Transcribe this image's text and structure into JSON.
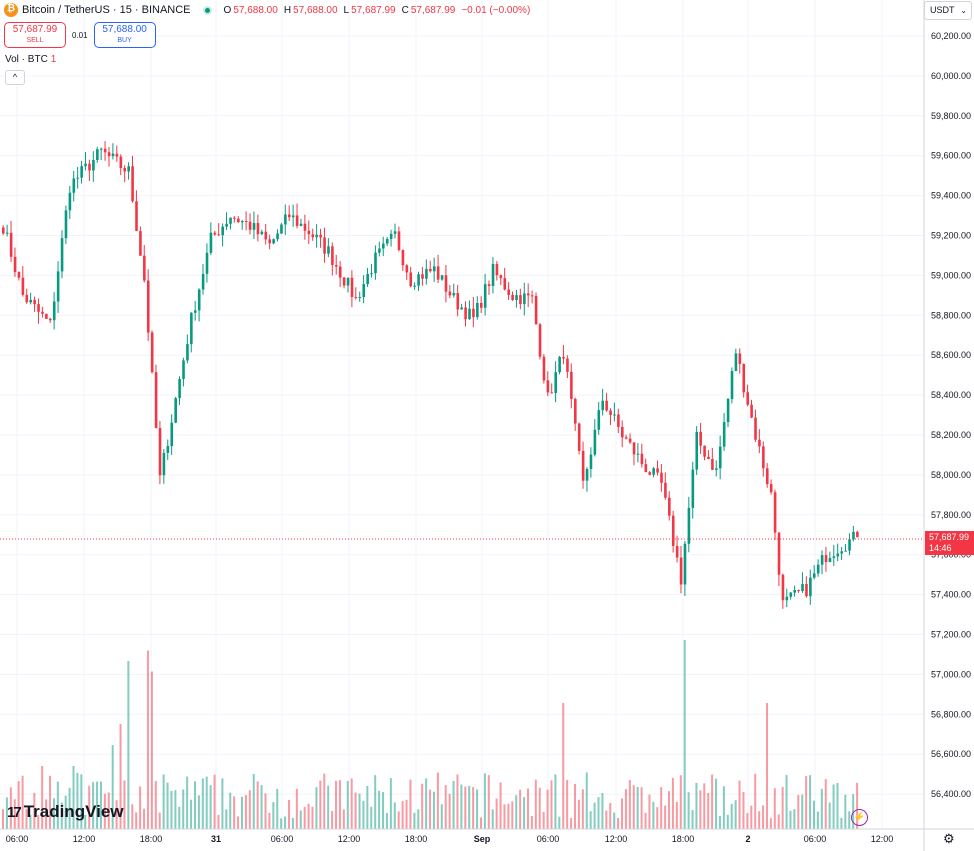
{
  "header": {
    "symbol": "Bitcoin / TetherUS · 15 · BINANCE",
    "ohlc": [
      {
        "key": "O",
        "value": "57,688.00"
      },
      {
        "key": "H",
        "value": "57,688.00"
      },
      {
        "key": "L",
        "value": "57,687.99"
      },
      {
        "key": "C",
        "value": "57,687.99"
      }
    ],
    "change": "−0.01 (−0.00%)",
    "icon": "bitcoin-icon"
  },
  "trade": {
    "sell_price": "57,687.99",
    "sell_label": "SELL",
    "spread": "0.01",
    "buy_price": "57,688.00",
    "buy_label": "BUY"
  },
  "volume": {
    "label": "Vol · BTC",
    "count": "1"
  },
  "collapse_icon": "chevron-up-icon",
  "currency": {
    "label": "USDT",
    "icon": "chevron-down-icon"
  },
  "last_price": {
    "value": "57,687.99",
    "countdown": "14:46"
  },
  "brand": {
    "name": "TradingView"
  },
  "colors": {
    "up": "#089981",
    "down": "#f23645",
    "grid": "#f0f3fa"
  },
  "chart_data": {
    "type": "candlestick",
    "title": "Bitcoin / TetherUS · 15 · BINANCE",
    "y_ticks": [
      "60,200.00",
      "60,000.00",
      "59,800.00",
      "59,600.00",
      "59,400.00",
      "59,200.00",
      "59,000.00",
      "58,800.00",
      "58,600.00",
      "58,400.00",
      "58,200.00",
      "58,000.00",
      "57,800.00",
      "57,600.00",
      "57,400.00",
      "57,200.00",
      "57,000.00",
      "56,800.00",
      "56,600.00",
      "56,400.00"
    ],
    "ylim": [
      56260,
      60300
    ],
    "x_ticks": [
      "06:00",
      "12:00",
      "18:00",
      "31",
      "06:00",
      "12:00",
      "18:00",
      "Sep",
      "06:00",
      "12:00",
      "18:00",
      "2",
      "06:00",
      "12:00"
    ],
    "anchors": [
      [
        0,
        59250
      ],
      [
        5,
        58900
      ],
      [
        12,
        58750
      ],
      [
        17,
        59450
      ],
      [
        25,
        59620
      ],
      [
        32,
        59520
      ],
      [
        36,
        58980
      ],
      [
        40,
        57980
      ],
      [
        43,
        58280
      ],
      [
        48,
        58780
      ],
      [
        53,
        59180
      ],
      [
        58,
        59300
      ],
      [
        63,
        59250
      ],
      [
        68,
        59150
      ],
      [
        73,
        59300
      ],
      [
        78,
        59220
      ],
      [
        83,
        59120
      ],
      [
        90,
        58880
      ],
      [
        95,
        59080
      ],
      [
        100,
        59200
      ],
      [
        104,
        58980
      ],
      [
        110,
        59030
      ],
      [
        115,
        58880
      ],
      [
        120,
        58780
      ],
      [
        125,
        59020
      ],
      [
        130,
        58900
      ],
      [
        135,
        58880
      ],
      [
        139,
        58380
      ],
      [
        143,
        58620
      ],
      [
        148,
        57950
      ],
      [
        153,
        58380
      ],
      [
        158,
        58200
      ],
      [
        163,
        58060
      ],
      [
        168,
        57950
      ],
      [
        173,
        57480
      ],
      [
        177,
        58180
      ],
      [
        182,
        58020
      ],
      [
        187,
        58620
      ],
      [
        192,
        58200
      ],
      [
        196,
        57900
      ],
      [
        199,
        57350
      ],
      [
        205,
        57430
      ],
      [
        210,
        57600
      ],
      [
        214,
        57650
      ],
      [
        218,
        57688
      ]
    ],
    "volume_ylim": [
      0,
      1
    ],
    "volume_spikes": [
      [
        32,
        0.8
      ],
      [
        37,
        0.85
      ],
      [
        38,
        0.75
      ],
      [
        143,
        0.6
      ],
      [
        174,
        0.9
      ],
      [
        195,
        0.6
      ],
      [
        30,
        0.5
      ],
      [
        28,
        0.4
      ],
      [
        18,
        0.3
      ],
      [
        10,
        0.3
      ]
    ]
  }
}
